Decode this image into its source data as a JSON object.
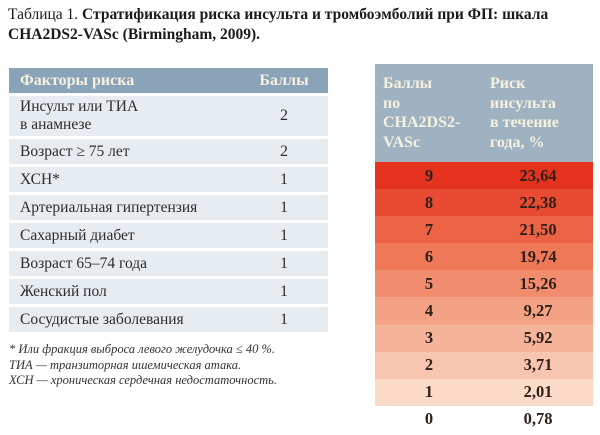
{
  "title": {
    "prefix": "Таблица 1. ",
    "main": "Стратификация риска инсульта и тромбоэмболий при ФП: шкала CHA2DS2-VASc (Birmingham, 2009)."
  },
  "left_table": {
    "header": {
      "factor": "Факторы риска",
      "points": "Баллы"
    },
    "rows": [
      {
        "factor": "Инсульт или ТИА\nв анамнезе",
        "points": "2"
      },
      {
        "factor": "Возраст ≥ 75 лет",
        "points": "2"
      },
      {
        "factor": "ХСН*",
        "points": "1"
      },
      {
        "factor": "Артериальная гипертензия",
        "points": "1"
      },
      {
        "factor": "Сахарный диабет",
        "points": "1"
      },
      {
        "factor": "Возраст 65–74 года",
        "points": "1"
      },
      {
        "factor": "Женский пол",
        "points": "1"
      },
      {
        "factor": "Сосудистые заболевания",
        "points": "1"
      }
    ],
    "colors": {
      "header_bg": "#8ba3b8",
      "header_text": "#f6f1de",
      "row_bg": "#e7ecf1"
    }
  },
  "right_table": {
    "header": {
      "score": "Баллы\nпо\nCHA2DS2-\nVASc",
      "risk": "Риск\nинсульта\nв течение\nгода, %"
    },
    "rows": [
      {
        "score": "9",
        "risk": "23,64",
        "bg": "#e5321f"
      },
      {
        "score": "8",
        "risk": "22,38",
        "bg": "#e84b31"
      },
      {
        "score": "7",
        "risk": "21,50",
        "bg": "#eb6245"
      },
      {
        "score": "6",
        "risk": "19,74",
        "bg": "#ee7857"
      },
      {
        "score": "5",
        "risk": "15,26",
        "bg": "#f18d6e"
      },
      {
        "score": "4",
        "risk": "9,27",
        "bg": "#f3a285"
      },
      {
        "score": "3",
        "risk": "5,92",
        "bg": "#f6b49b"
      },
      {
        "score": "2",
        "risk": "3,71",
        "bg": "#f8c6b0"
      },
      {
        "score": "1",
        "risk": "2,01",
        "bg": "#fbdac8"
      },
      {
        "score": "0",
        "risk": "0,78",
        "bg": "#ffffff"
      }
    ],
    "colors": {
      "header_bg": "#9fb2c2",
      "header_text": "#f6f1de"
    }
  },
  "footnotes": [
    "* Или фракция выброса левого желудочка ≤ 40 %.",
    "ТИА — транзиторная ишемическая атака.",
    "ХСН — хроническая сердечная недостаточность."
  ]
}
